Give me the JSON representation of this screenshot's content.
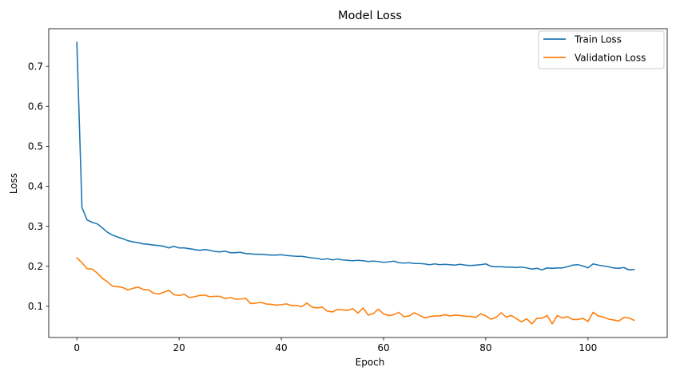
{
  "chart_data": {
    "type": "line",
    "title": "Model Loss",
    "xlabel": "Epoch",
    "ylabel": "Loss",
    "xlim": [
      -5.5,
      115.5
    ],
    "ylim": [
      0.022,
      0.794
    ],
    "xticks": [
      0,
      20,
      40,
      60,
      80,
      100
    ],
    "yticks": [
      0.1,
      0.2,
      0.3,
      0.4,
      0.5,
      0.6,
      0.7
    ],
    "grid": false,
    "legend_position": "top-right",
    "series": [
      {
        "name": "Train Loss",
        "color": "#1f77b4",
        "values": [
          0.76,
          0.347,
          0.316,
          0.31,
          0.306,
          0.296,
          0.285,
          0.278,
          0.273,
          0.269,
          0.264,
          0.261,
          0.259,
          0.256,
          0.255,
          0.253,
          0.252,
          0.25,
          0.246,
          0.25,
          0.246,
          0.246,
          0.244,
          0.242,
          0.24,
          0.242,
          0.24,
          0.237,
          0.236,
          0.238,
          0.234,
          0.234,
          0.235,
          0.232,
          0.231,
          0.23,
          0.23,
          0.229,
          0.228,
          0.228,
          0.229,
          0.227,
          0.226,
          0.225,
          0.225,
          0.223,
          0.221,
          0.22,
          0.217,
          0.219,
          0.216,
          0.218,
          0.216,
          0.215,
          0.214,
          0.215,
          0.214,
          0.212,
          0.213,
          0.212,
          0.21,
          0.211,
          0.213,
          0.209,
          0.208,
          0.209,
          0.207,
          0.207,
          0.206,
          0.204,
          0.206,
          0.204,
          0.205,
          0.204,
          0.203,
          0.205,
          0.203,
          0.202,
          0.203,
          0.204,
          0.206,
          0.2,
          0.199,
          0.199,
          0.198,
          0.198,
          0.197,
          0.198,
          0.196,
          0.193,
          0.195,
          0.191,
          0.196,
          0.195,
          0.196,
          0.196,
          0.199,
          0.203,
          0.204,
          0.201,
          0.196,
          0.206,
          0.203,
          0.201,
          0.199,
          0.196,
          0.195,
          0.197,
          0.191,
          0.192
        ]
      },
      {
        "name": "Validation Loss",
        "color": "#ff7f0e",
        "values": [
          0.221,
          0.209,
          0.194,
          0.193,
          0.183,
          0.17,
          0.161,
          0.15,
          0.149,
          0.147,
          0.141,
          0.145,
          0.148,
          0.142,
          0.141,
          0.133,
          0.131,
          0.135,
          0.14,
          0.129,
          0.127,
          0.13,
          0.122,
          0.124,
          0.127,
          0.128,
          0.124,
          0.125,
          0.125,
          0.119,
          0.122,
          0.118,
          0.118,
          0.12,
          0.107,
          0.108,
          0.11,
          0.106,
          0.105,
          0.103,
          0.104,
          0.106,
          0.102,
          0.102,
          0.099,
          0.108,
          0.098,
          0.096,
          0.098,
          0.088,
          0.086,
          0.092,
          0.091,
          0.09,
          0.094,
          0.083,
          0.096,
          0.078,
          0.082,
          0.093,
          0.081,
          0.077,
          0.079,
          0.085,
          0.074,
          0.076,
          0.084,
          0.078,
          0.071,
          0.074,
          0.076,
          0.076,
          0.079,
          0.076,
          0.078,
          0.077,
          0.075,
          0.075,
          0.072,
          0.081,
          0.076,
          0.068,
          0.072,
          0.084,
          0.073,
          0.077,
          0.069,
          0.061,
          0.069,
          0.056,
          0.07,
          0.07,
          0.077,
          0.056,
          0.077,
          0.071,
          0.074,
          0.067,
          0.067,
          0.07,
          0.062,
          0.085,
          0.076,
          0.073,
          0.068,
          0.066,
          0.063,
          0.072,
          0.071,
          0.065
        ]
      }
    ]
  }
}
